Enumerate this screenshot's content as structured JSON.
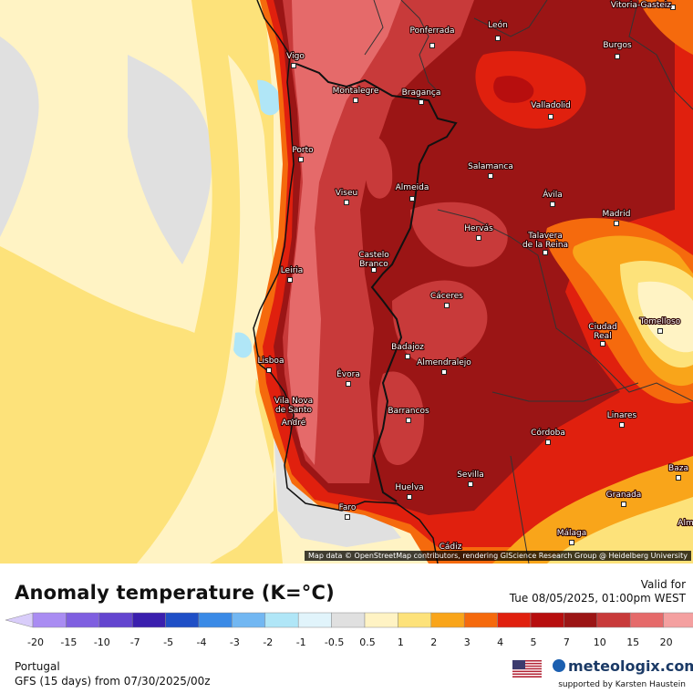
{
  "map": {
    "title": "Anomaly temperature (K=°C)",
    "valid_label": "Valid for",
    "valid_time": "Tue 08/05/2025, 01:00pm WEST",
    "attribution": "Map data © OpenStreetMap contributors, rendering GIScience Research Group @ Heidelberg University",
    "region": "Portugal",
    "model_run": "GFS (15 days) from  07/30/2025/00z",
    "brand": "meteologix.com",
    "supported_by": "supported by Karsten Haustein",
    "flag_icon": "us-flag-icon"
  },
  "cities": [
    {
      "name": "Vitoria-Gasteiz"
    },
    {
      "name": "Ponferrada"
    },
    {
      "name": "León"
    },
    {
      "name": "Burgos"
    },
    {
      "name": "Vigo"
    },
    {
      "name": "Montalegre"
    },
    {
      "name": "Bragança"
    },
    {
      "name": "Valladolid"
    },
    {
      "name": "Porto"
    },
    {
      "name": "Salamanca"
    },
    {
      "name": "Viseu"
    },
    {
      "name": "Almeida"
    },
    {
      "name": "Ávila"
    },
    {
      "name": "Madrid"
    },
    {
      "name": "Hervás"
    },
    {
      "name": "Talavera"
    },
    {
      "name": "de la Reina"
    },
    {
      "name": "Leiria"
    },
    {
      "name": "Castelo"
    },
    {
      "name": "Branco"
    },
    {
      "name": "Cáceres"
    },
    {
      "name": "Ciudad"
    },
    {
      "name": "Real"
    },
    {
      "name": "Tomelloso"
    },
    {
      "name": "Lisboa"
    },
    {
      "name": "Badajoz"
    },
    {
      "name": "Almendralejo"
    },
    {
      "name": "Évora"
    },
    {
      "name": "Vila Nova"
    },
    {
      "name": "de Santo"
    },
    {
      "name": "André"
    },
    {
      "name": "Barrancos"
    },
    {
      "name": "Linares"
    },
    {
      "name": "Córdoba"
    },
    {
      "name": "Sevilla"
    },
    {
      "name": "Baza"
    },
    {
      "name": "Huelva"
    },
    {
      "name": "Granada"
    },
    {
      "name": "Faro"
    },
    {
      "name": "Málaga"
    },
    {
      "name": "Alm"
    },
    {
      "name": "Cádiz"
    }
  ],
  "legend": {
    "ticks": [
      "-20",
      "-15",
      "-10",
      "-7",
      "-5",
      "-4",
      "-3",
      "-2",
      "-1",
      "-0.5",
      "0.5",
      "1",
      "2",
      "3",
      "4",
      "5",
      "7",
      "10",
      "15",
      "20"
    ],
    "colors": [
      "#a98cf2",
      "#7f5fe0",
      "#6345cf",
      "#3a1fae",
      "#1f4fc6",
      "#3a8ae6",
      "#72b7f2",
      "#b0e6f7",
      "#e1f4fb",
      "#e0e0e0",
      "#fff3c4",
      "#fde27a",
      "#f9a51a",
      "#f56a0d",
      "#e0200e",
      "#b70e0e",
      "#9b1515",
      "#c83a3a",
      "#e56a6a",
      "#f4a0a0"
    ],
    "low_end_color": "#d9cdfa",
    "high_end_color": "#fbd4d4"
  }
}
